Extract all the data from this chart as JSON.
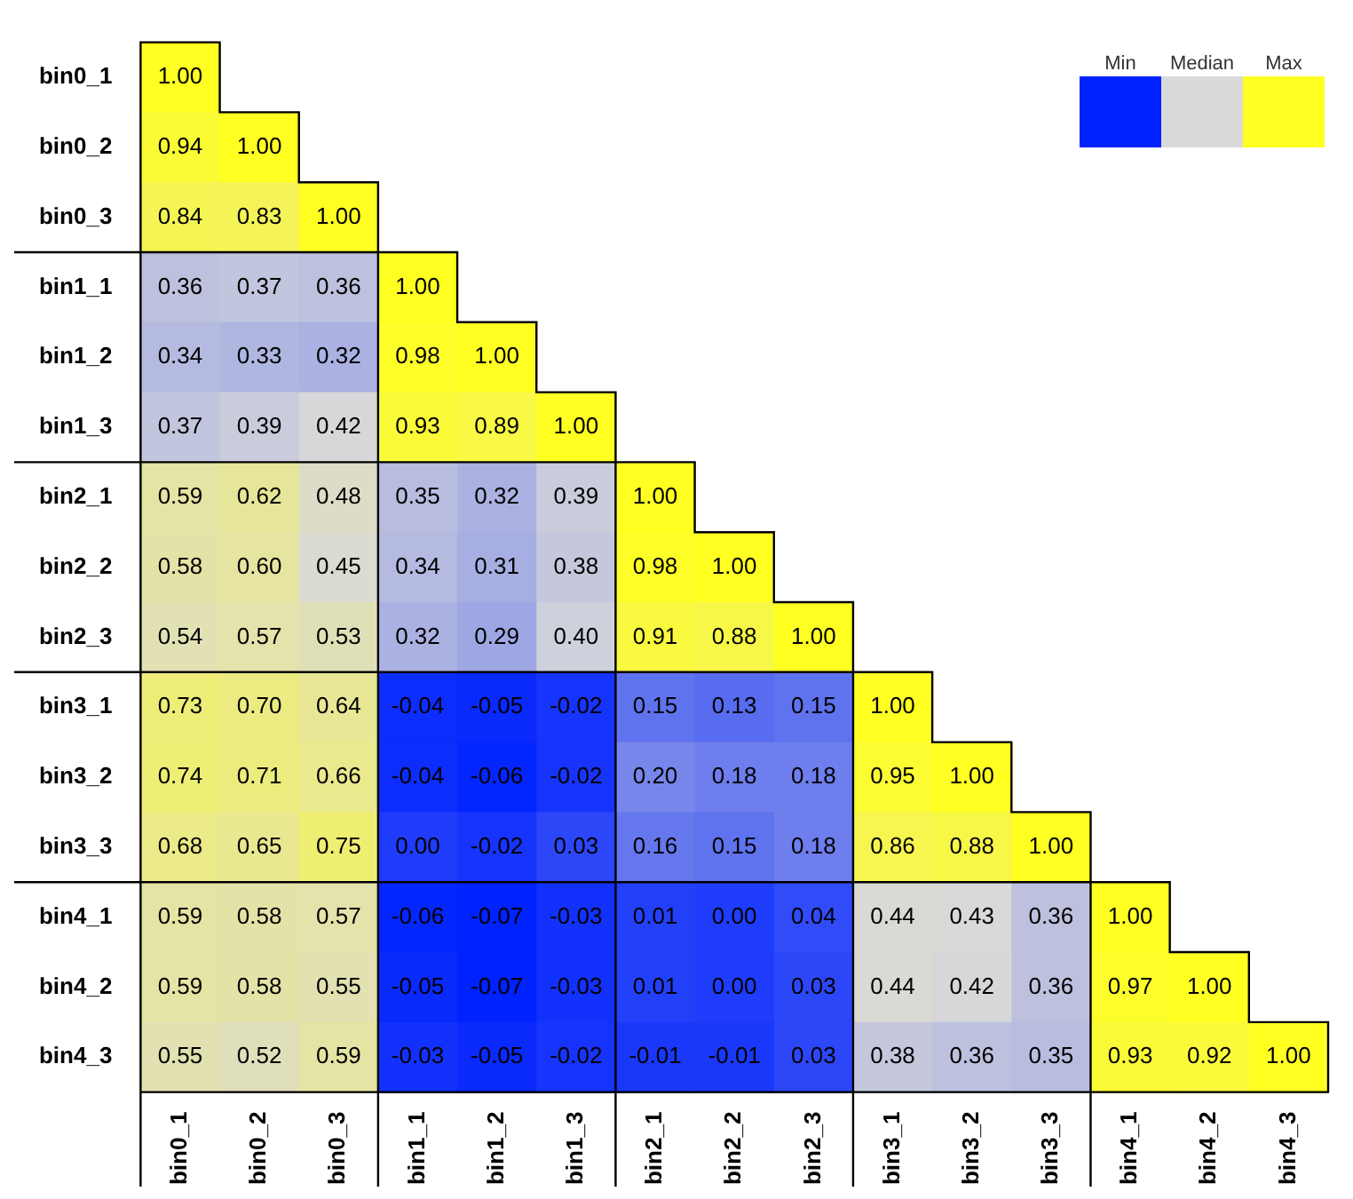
{
  "chart_data": {
    "type": "heatmap",
    "categories": [
      "bin0_1",
      "bin0_2",
      "bin0_3",
      "bin1_1",
      "bin1_2",
      "bin1_3",
      "bin2_1",
      "bin2_2",
      "bin2_3",
      "bin3_1",
      "bin3_2",
      "bin3_3",
      "bin4_1",
      "bin4_2",
      "bin4_3"
    ],
    "y_categories": [
      "bin0_1",
      "bin0_2",
      "bin0_3",
      "bin1_1",
      "bin1_2",
      "bin1_3",
      "bin2_1",
      "bin2_2",
      "bin2_3",
      "bin3_1",
      "bin3_2",
      "bin3_3",
      "bin4_1",
      "bin4_2",
      "bin4_3"
    ],
    "cells": [
      [
        1.0,
        null,
        null,
        null,
        null,
        null,
        null,
        null,
        null,
        null,
        null,
        null,
        null,
        null,
        null
      ],
      [
        0.94,
        1.0,
        null,
        null,
        null,
        null,
        null,
        null,
        null,
        null,
        null,
        null,
        null,
        null,
        null
      ],
      [
        0.84,
        0.83,
        1.0,
        null,
        null,
        null,
        null,
        null,
        null,
        null,
        null,
        null,
        null,
        null,
        null
      ],
      [
        0.36,
        0.37,
        0.36,
        1.0,
        null,
        null,
        null,
        null,
        null,
        null,
        null,
        null,
        null,
        null,
        null
      ],
      [
        0.34,
        0.33,
        0.32,
        0.98,
        1.0,
        null,
        null,
        null,
        null,
        null,
        null,
        null,
        null,
        null,
        null
      ],
      [
        0.37,
        0.39,
        0.42,
        0.93,
        0.89,
        1.0,
        null,
        null,
        null,
        null,
        null,
        null,
        null,
        null,
        null
      ],
      [
        0.59,
        0.62,
        0.48,
        0.35,
        0.32,
        0.39,
        1.0,
        null,
        null,
        null,
        null,
        null,
        null,
        null,
        null
      ],
      [
        0.58,
        0.6,
        0.45,
        0.34,
        0.31,
        0.38,
        0.98,
        1.0,
        null,
        null,
        null,
        null,
        null,
        null,
        null
      ],
      [
        0.54,
        0.57,
        0.53,
        0.32,
        0.29,
        0.4,
        0.91,
        0.88,
        1.0,
        null,
        null,
        null,
        null,
        null,
        null
      ],
      [
        0.73,
        0.7,
        0.64,
        -0.04,
        -0.05,
        -0.02,
        0.15,
        0.13,
        0.15,
        1.0,
        null,
        null,
        null,
        null,
        null
      ],
      [
        0.74,
        0.71,
        0.66,
        -0.04,
        -0.06,
        -0.02,
        0.2,
        0.18,
        0.18,
        0.95,
        1.0,
        null,
        null,
        null,
        null
      ],
      [
        0.68,
        0.65,
        0.75,
        0.0,
        -0.02,
        0.03,
        0.16,
        0.15,
        0.18,
        0.86,
        0.88,
        1.0,
        null,
        null,
        null
      ],
      [
        0.59,
        0.58,
        0.57,
        -0.06,
        -0.07,
        -0.03,
        0.01,
        0.0,
        0.04,
        0.44,
        0.43,
        0.36,
        1.0,
        null,
        null
      ],
      [
        0.59,
        0.58,
        0.55,
        -0.05,
        -0.07,
        -0.03,
        0.01,
        0.0,
        0.03,
        0.44,
        0.42,
        0.36,
        0.97,
        1.0,
        null
      ],
      [
        0.55,
        0.52,
        0.59,
        -0.03,
        -0.05,
        -0.02,
        -0.01,
        -0.01,
        0.03,
        0.38,
        0.36,
        0.35,
        0.93,
        0.92,
        1.0
      ]
    ],
    "cell_labels": [
      [
        "1.00",
        null,
        null,
        null,
        null,
        null,
        null,
        null,
        null,
        null,
        null,
        null,
        null,
        null,
        null
      ],
      [
        "0.94",
        "1.00",
        null,
        null,
        null,
        null,
        null,
        null,
        null,
        null,
        null,
        null,
        null,
        null,
        null
      ],
      [
        "0.84",
        "0.83",
        "1.00",
        null,
        null,
        null,
        null,
        null,
        null,
        null,
        null,
        null,
        null,
        null,
        null
      ],
      [
        "0.36",
        "0.37",
        "0.36",
        "1.00",
        null,
        null,
        null,
        null,
        null,
        null,
        null,
        null,
        null,
        null,
        null
      ],
      [
        "0.34",
        "0.33",
        "0.32",
        "0.98",
        "1.00",
        null,
        null,
        null,
        null,
        null,
        null,
        null,
        null,
        null,
        null
      ],
      [
        "0.37",
        "0.39",
        "0.42",
        "0.93",
        "0.89",
        "1.00",
        null,
        null,
        null,
        null,
        null,
        null,
        null,
        null,
        null
      ],
      [
        "0.59",
        "0.62",
        "0.48",
        "0.35",
        "0.32",
        "0.39",
        "1.00",
        null,
        null,
        null,
        null,
        null,
        null,
        null,
        null
      ],
      [
        "0.58",
        "0.60",
        "0.45",
        "0.34",
        "0.31",
        "0.38",
        "0.98",
        "1.00",
        null,
        null,
        null,
        null,
        null,
        null,
        null
      ],
      [
        "0.54",
        "0.57",
        "0.53",
        "0.32",
        "0.29",
        "0.40",
        "0.91",
        "0.88",
        "1.00",
        null,
        null,
        null,
        null,
        null,
        null
      ],
      [
        "0.73",
        "0.70",
        "0.64",
        "-0.04",
        "-0.05",
        "-0.02",
        "0.15",
        "0.13",
        "0.15",
        "1.00",
        null,
        null,
        null,
        null,
        null
      ],
      [
        "0.74",
        "0.71",
        "0.66",
        "-0.04",
        "-0.06",
        "-0.02",
        "0.20",
        "0.18",
        "0.18",
        "0.95",
        "1.00",
        null,
        null,
        null,
        null
      ],
      [
        "0.68",
        "0.65",
        "0.75",
        "0.00",
        "-0.02",
        "0.03",
        "0.16",
        "0.15",
        "0.18",
        "0.86",
        "0.88",
        "1.00",
        null,
        null,
        null
      ],
      [
        "0.59",
        "0.58",
        "0.57",
        "-0.06",
        "-0.07",
        "-0.03",
        "0.01",
        "0.00",
        "0.04",
        "0.44",
        "0.43",
        "0.36",
        "1.00",
        null,
        null
      ],
      [
        "0.59",
        "0.58",
        "0.55",
        "-0.05",
        "-0.07",
        "-0.03",
        "0.01",
        "0.00",
        "0.03",
        "0.44",
        "0.42",
        "0.36",
        "0.97",
        "1.00",
        null
      ],
      [
        "0.55",
        "0.52",
        "0.59",
        "-0.03",
        "-0.05",
        "-0.02",
        "-0.01",
        "-0.01",
        "0.03",
        "0.38",
        "0.36",
        "0.35",
        "0.93",
        "0.92",
        "1.00"
      ]
    ],
    "annotations": [
      "Min",
      "Median",
      "Max"
    ]
  }
}
